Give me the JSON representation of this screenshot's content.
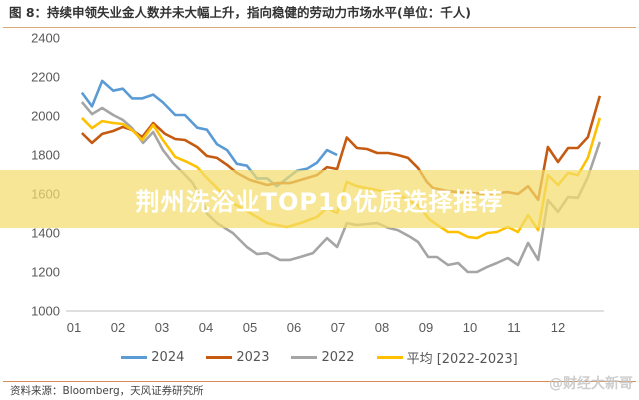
{
  "title": "图 8：持续申领失业金人数并未大幅上升，指向稳健的劳动力市场水平(单位：千人)",
  "source": "资料来源：Bloomberg，天风证券研究所",
  "watermark": "@财经大新哥",
  "banner": "荆州洗浴业TOP10优质选择推荐",
  "chart_data": {
    "type": "line",
    "title": "图 8：持续申领失业金人数并未大幅上升，指向稳健的劳动力市场水平(单位：千人)",
    "ylim": [
      1000,
      2400
    ],
    "yticks": [
      1000,
      1200,
      1400,
      1600,
      1800,
      2000,
      2200,
      2400
    ],
    "xtick_labels": [
      "01",
      "02",
      "03",
      "04",
      "05",
      "06",
      "07",
      "08",
      "09",
      "10",
      "11",
      "12"
    ],
    "grid": false,
    "legend_placement": "bottom",
    "series": [
      {
        "name": "2024",
        "color": "#5b9bd5",
        "points": [
          [
            1.18,
            2120
          ],
          [
            1.41,
            2050
          ],
          [
            1.64,
            2180
          ],
          [
            1.89,
            2130
          ],
          [
            2.11,
            2140
          ],
          [
            2.32,
            2090
          ],
          [
            2.55,
            2090
          ],
          [
            2.8,
            2110
          ],
          [
            3.02,
            2070
          ],
          [
            3.3,
            2005
          ],
          [
            3.52,
            2005
          ],
          [
            3.8,
            1940
          ],
          [
            4.02,
            1930
          ],
          [
            4.25,
            1855
          ],
          [
            4.48,
            1825
          ],
          [
            4.7,
            1755
          ],
          [
            4.93,
            1745
          ],
          [
            5.16,
            1680
          ],
          [
            5.39,
            1680
          ],
          [
            5.61,
            1640
          ],
          [
            5.84,
            1680
          ],
          [
            6.07,
            1720
          ],
          [
            6.3,
            1730
          ],
          [
            6.52,
            1760
          ],
          [
            6.75,
            1825
          ],
          [
            6.98,
            1800
          ]
        ]
      },
      {
        "name": "2023",
        "color": "#c55a11",
        "points": [
          [
            1.18,
            1913
          ],
          [
            1.41,
            1862
          ],
          [
            1.64,
            1908
          ],
          [
            1.89,
            1923
          ],
          [
            2.11,
            1944
          ],
          [
            2.32,
            1928
          ],
          [
            2.55,
            1892
          ],
          [
            2.8,
            1964
          ],
          [
            3.07,
            1908
          ],
          [
            3.3,
            1882
          ],
          [
            3.52,
            1877
          ],
          [
            3.8,
            1841
          ],
          [
            4.02,
            1795
          ],
          [
            4.25,
            1785
          ],
          [
            4.48,
            1749
          ],
          [
            4.7,
            1708
          ],
          [
            5.0,
            1672
          ],
          [
            5.39,
            1646
          ],
          [
            5.61,
            1656
          ],
          [
            5.91,
            1656
          ],
          [
            6.3,
            1682
          ],
          [
            6.52,
            1697
          ],
          [
            6.75,
            1738
          ],
          [
            6.98,
            1728
          ],
          [
            7.2,
            1890
          ],
          [
            7.43,
            1836
          ],
          [
            7.66,
            1831
          ],
          [
            7.89,
            1810
          ],
          [
            8.14,
            1810
          ],
          [
            8.36,
            1800
          ],
          [
            8.59,
            1785
          ],
          [
            8.82,
            1733
          ],
          [
            9.02,
            1662
          ],
          [
            9.16,
            1631
          ],
          [
            9.5,
            1615
          ],
          [
            9.95,
            1605
          ],
          [
            10.39,
            1600
          ],
          [
            10.86,
            1610
          ],
          [
            11.09,
            1600
          ],
          [
            11.32,
            1640
          ],
          [
            11.55,
            1570
          ],
          [
            11.77,
            1841
          ],
          [
            12.0,
            1764
          ],
          [
            12.23,
            1836
          ],
          [
            12.45,
            1836
          ],
          [
            12.68,
            1892
          ],
          [
            12.95,
            2103
          ]
        ]
      },
      {
        "name": "2022",
        "color": "#a5a5a5",
        "points": [
          [
            1.18,
            2072
          ],
          [
            1.41,
            2010
          ],
          [
            1.64,
            2041
          ],
          [
            1.89,
            2005
          ],
          [
            2.11,
            1980
          ],
          [
            2.32,
            1938
          ],
          [
            2.57,
            1862
          ],
          [
            2.8,
            1918
          ],
          [
            3.02,
            1826
          ],
          [
            3.25,
            1759
          ],
          [
            3.48,
            1708
          ],
          [
            3.7,
            1656
          ],
          [
            3.93,
            1560
          ],
          [
            4.02,
            1500
          ],
          [
            4.25,
            1451
          ],
          [
            4.61,
            1400
          ],
          [
            4.93,
            1328
          ],
          [
            5.16,
            1292
          ],
          [
            5.39,
            1297
          ],
          [
            5.68,
            1262
          ],
          [
            5.91,
            1262
          ],
          [
            6.14,
            1277
          ],
          [
            6.43,
            1297
          ],
          [
            6.75,
            1374
          ],
          [
            6.98,
            1328
          ],
          [
            7.2,
            1451
          ],
          [
            7.43,
            1441
          ],
          [
            7.89,
            1451
          ],
          [
            8.14,
            1426
          ],
          [
            8.36,
            1415
          ],
          [
            8.64,
            1380
          ],
          [
            8.82,
            1354
          ],
          [
            9.05,
            1277
          ],
          [
            9.25,
            1277
          ],
          [
            9.5,
            1236
          ],
          [
            9.73,
            1246
          ],
          [
            9.95,
            1200
          ],
          [
            10.16,
            1200
          ],
          [
            10.39,
            1226
          ],
          [
            10.61,
            1246
          ],
          [
            10.86,
            1272
          ],
          [
            11.09,
            1236
          ],
          [
            11.32,
            1349
          ],
          [
            11.55,
            1262
          ],
          [
            11.77,
            1569
          ],
          [
            12.0,
            1508
          ],
          [
            12.23,
            1585
          ],
          [
            12.45,
            1580
          ],
          [
            12.68,
            1687
          ],
          [
            12.95,
            1867
          ]
        ]
      },
      {
        "name": "平均  [2022-2023]",
        "color": "#ffc000",
        "points": [
          [
            1.18,
            1990
          ],
          [
            1.41,
            1938
          ],
          [
            1.64,
            1974
          ],
          [
            1.89,
            1964
          ],
          [
            2.11,
            1959
          ],
          [
            2.32,
            1928
          ],
          [
            2.55,
            1877
          ],
          [
            2.8,
            1954
          ],
          [
            3.02,
            1877
          ],
          [
            3.3,
            1790
          ],
          [
            3.57,
            1764
          ],
          [
            3.8,
            1738
          ],
          [
            4.02,
            1682
          ],
          [
            4.3,
            1620
          ],
          [
            4.61,
            1554
          ],
          [
            5.0,
            1503
          ],
          [
            5.39,
            1451
          ],
          [
            5.84,
            1431
          ],
          [
            6.14,
            1451
          ],
          [
            6.52,
            1482
          ],
          [
            6.75,
            1528
          ],
          [
            6.98,
            1503
          ],
          [
            7.2,
            1662
          ],
          [
            7.43,
            1640
          ],
          [
            7.89,
            1620
          ],
          [
            8.36,
            1600
          ],
          [
            8.82,
            1540
          ],
          [
            9.09,
            1467
          ],
          [
            9.5,
            1405
          ],
          [
            9.73,
            1405
          ],
          [
            9.95,
            1380
          ],
          [
            10.16,
            1374
          ],
          [
            10.39,
            1400
          ],
          [
            10.61,
            1405
          ],
          [
            10.86,
            1431
          ],
          [
            11.09,
            1405
          ],
          [
            11.32,
            1492
          ],
          [
            11.55,
            1415
          ],
          [
            11.77,
            1697
          ],
          [
            12.0,
            1646
          ],
          [
            12.23,
            1708
          ],
          [
            12.45,
            1697
          ],
          [
            12.68,
            1785
          ],
          [
            12.95,
            1990
          ]
        ]
      }
    ]
  }
}
